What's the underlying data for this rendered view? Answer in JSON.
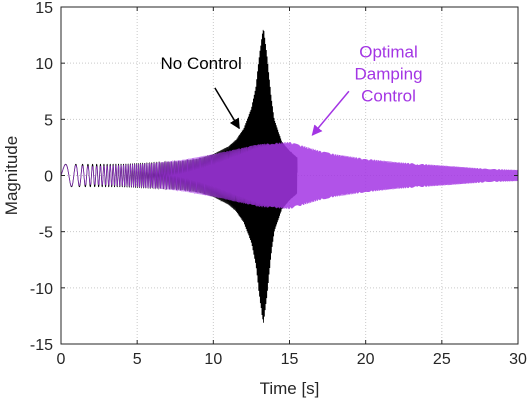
{
  "chart_data": {
    "type": "line",
    "xlabel": "Time [s]",
    "ylabel": "Magnitude",
    "xlim": [
      0,
      30
    ],
    "ylim": [
      -15,
      15
    ],
    "xticks": [
      0,
      5,
      10,
      15,
      20,
      25,
      30
    ],
    "yticks": [
      -15,
      -10,
      -5,
      0,
      5,
      10,
      15
    ],
    "grid": true,
    "grid_style": "dotted",
    "series": [
      {
        "color": "#000000",
        "envelope": {
          "t": [
            0,
            2,
            4,
            6,
            8,
            9,
            10,
            11,
            11.5,
            12,
            12.5,
            12.8,
            13,
            13.2,
            13.3,
            13.5,
            13.8,
            14,
            14.5,
            15,
            15.5
          ],
          "amplitude": [
            1.0,
            1.0,
            1.0,
            1.1,
            1.3,
            1.5,
            1.9,
            2.6,
            3.2,
            4.2,
            6.0,
            8.0,
            10.5,
            12.5,
            13.2,
            11.0,
            7.0,
            5.0,
            3.0,
            2.2,
            1.6
          ]
        }
      },
      {
        "color": "#A335E4",
        "envelope": {
          "t": [
            0,
            1,
            2,
            4,
            6,
            8,
            10,
            12,
            13,
            14,
            15,
            16,
            17,
            18,
            20,
            22,
            24,
            26,
            28,
            30
          ],
          "amplitude": [
            1.0,
            0.9,
            0.8,
            0.9,
            1.1,
            1.4,
            1.9,
            2.5,
            2.8,
            2.9,
            3.0,
            2.6,
            2.2,
            1.9,
            1.5,
            1.2,
            1.0,
            0.8,
            0.6,
            0.5
          ]
        }
      }
    ],
    "annotations": [
      {
        "text": "No Control",
        "color": "#000000",
        "x": 9.2,
        "y": 9.5
      },
      {
        "lines": [
          "Optimal",
          "Damping",
          "Control"
        ],
        "color": "#A335E4",
        "x": 21.5,
        "y": 10.5
      }
    ]
  }
}
